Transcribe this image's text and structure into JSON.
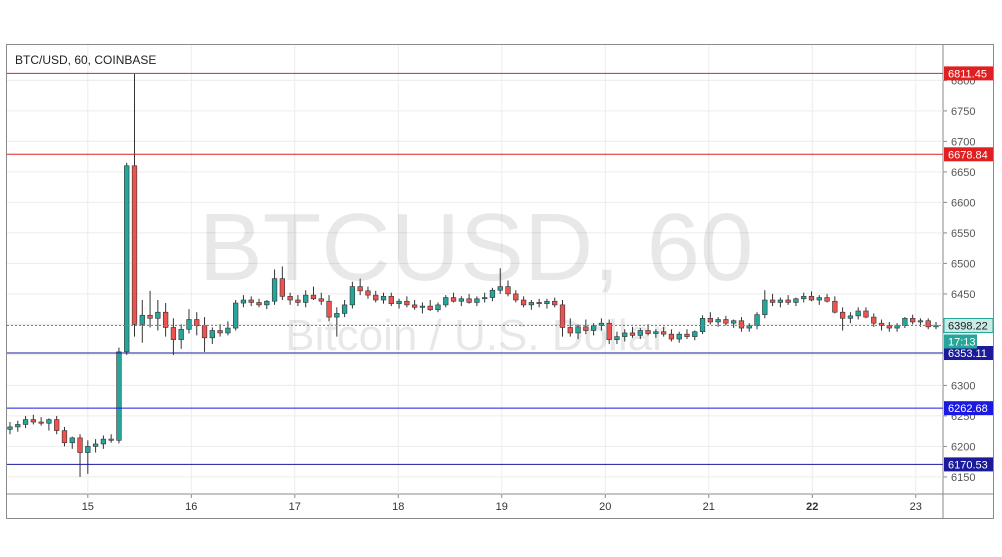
{
  "symbol_label": "BTC/USD, 60, COINBASE",
  "watermark": {
    "main": "BTCUSD, 60",
    "sub": "Bitcoin / U.S. Dollar"
  },
  "chart_data": {
    "type": "candlestick",
    "title": "BTC/USD, 60, COINBASE",
    "ylim": [
      6122,
      6858
    ],
    "y_ticks": [
      6150,
      6200,
      6250,
      6300,
      6350,
      6400,
      6450,
      6500,
      6550,
      6600,
      6650,
      6700,
      6750,
      6800
    ],
    "x_ticks": [
      "15",
      "16",
      "17",
      "18",
      "19",
      "20",
      "21",
      "22",
      "23"
    ],
    "x_tick_bold": "22",
    "grid": true,
    "up_color": "#26a69a",
    "down_color": "#ef5350",
    "horizontal_levels": [
      {
        "value": 6811.45,
        "label": "6811.45",
        "color": "#e02020"
      },
      {
        "value": 6678.84,
        "label": "6678.84",
        "color": "#e02020"
      },
      {
        "value": 6353.11,
        "label": "6353.11",
        "color": "#1a1a9a"
      },
      {
        "value": 6262.68,
        "label": "6262.68",
        "color": "#1a1ae0"
      },
      {
        "value": 6170.53,
        "label": "6170.53",
        "color": "#1a1a9a"
      }
    ],
    "current_price": {
      "value": 6398.22,
      "label": "6398.22",
      "color": "#26a69a",
      "countdown": "17:13"
    },
    "ohlc": [
      [
        6228,
        6240,
        6220,
        6232
      ],
      [
        6232,
        6242,
        6224,
        6236
      ],
      [
        6236,
        6250,
        6230,
        6244
      ],
      [
        6244,
        6252,
        6236,
        6240
      ],
      [
        6240,
        6248,
        6234,
        6238
      ],
      [
        6238,
        6246,
        6226,
        6244
      ],
      [
        6244,
        6250,
        6220,
        6226
      ],
      [
        6226,
        6232,
        6200,
        6206
      ],
      [
        6206,
        6216,
        6196,
        6214
      ],
      [
        6214,
        6220,
        6150,
        6190
      ],
      [
        6190,
        6210,
        6155,
        6200
      ],
      [
        6200,
        6212,
        6190,
        6204
      ],
      [
        6204,
        6218,
        6196,
        6212
      ],
      [
        6212,
        6220,
        6206,
        6210
      ],
      [
        6210,
        6362,
        6205,
        6355
      ],
      [
        6355,
        6665,
        6350,
        6660
      ],
      [
        6660,
        6811,
        6380,
        6400
      ],
      [
        6400,
        6440,
        6370,
        6415
      ],
      [
        6415,
        6455,
        6395,
        6410
      ],
      [
        6410,
        6440,
        6390,
        6420
      ],
      [
        6420,
        6435,
        6380,
        6395
      ],
      [
        6395,
        6410,
        6350,
        6375
      ],
      [
        6375,
        6400,
        6360,
        6392
      ],
      [
        6392,
        6425,
        6385,
        6408
      ],
      [
        6408,
        6420,
        6382,
        6398
      ],
      [
        6398,
        6412,
        6355,
        6378
      ],
      [
        6378,
        6395,
        6368,
        6390
      ],
      [
        6390,
        6400,
        6380,
        6386
      ],
      [
        6386,
        6405,
        6382,
        6394
      ],
      [
        6394,
        6440,
        6390,
        6435
      ],
      [
        6435,
        6448,
        6428,
        6440
      ],
      [
        6440,
        6446,
        6430,
        6436
      ],
      [
        6436,
        6442,
        6428,
        6432
      ],
      [
        6432,
        6440,
        6425,
        6438
      ],
      [
        6438,
        6490,
        6432,
        6475
      ],
      [
        6475,
        6495,
        6440,
        6446
      ],
      [
        6446,
        6452,
        6432,
        6440
      ],
      [
        6440,
        6448,
        6430,
        6436
      ],
      [
        6436,
        6456,
        6428,
        6448
      ],
      [
        6448,
        6462,
        6440,
        6442
      ],
      [
        6442,
        6452,
        6432,
        6438
      ],
      [
        6438,
        6448,
        6405,
        6412
      ],
      [
        6412,
        6428,
        6380,
        6418
      ],
      [
        6418,
        6440,
        6412,
        6432
      ],
      [
        6432,
        6470,
        6426,
        6462
      ],
      [
        6462,
        6475,
        6448,
        6455
      ],
      [
        6455,
        6462,
        6442,
        6448
      ],
      [
        6448,
        6455,
        6436,
        6440
      ],
      [
        6440,
        6452,
        6434,
        6446
      ],
      [
        6446,
        6452,
        6430,
        6434
      ],
      [
        6434,
        6442,
        6426,
        6438
      ],
      [
        6438,
        6446,
        6428,
        6432
      ],
      [
        6432,
        6440,
        6424,
        6428
      ],
      [
        6428,
        6436,
        6418,
        6430
      ],
      [
        6430,
        6440,
        6422,
        6424
      ],
      [
        6424,
        6436,
        6420,
        6432
      ],
      [
        6432,
        6448,
        6428,
        6444
      ],
      [
        6444,
        6452,
        6436,
        6438
      ],
      [
        6438,
        6446,
        6430,
        6442
      ],
      [
        6442,
        6450,
        6434,
        6436
      ],
      [
        6436,
        6446,
        6430,
        6442
      ],
      [
        6442,
        6452,
        6436,
        6444
      ],
      [
        6444,
        6460,
        6438,
        6456
      ],
      [
        6456,
        6492,
        6450,
        6462
      ],
      [
        6462,
        6472,
        6446,
        6450
      ],
      [
        6450,
        6456,
        6436,
        6440
      ],
      [
        6440,
        6446,
        6428,
        6432
      ],
      [
        6432,
        6440,
        6424,
        6436
      ],
      [
        6436,
        6442,
        6428,
        6434
      ],
      [
        6434,
        6442,
        6426,
        6438
      ],
      [
        6438,
        6444,
        6428,
        6432
      ],
      [
        6432,
        6440,
        6380,
        6395
      ],
      [
        6395,
        6410,
        6380,
        6386
      ],
      [
        6386,
        6400,
        6376,
        6396
      ],
      [
        6396,
        6408,
        6384,
        6390
      ],
      [
        6390,
        6402,
        6382,
        6398
      ],
      [
        6398,
        6410,
        6390,
        6402
      ],
      [
        6402,
        6408,
        6368,
        6375
      ],
      [
        6375,
        6388,
        6368,
        6380
      ],
      [
        6380,
        6392,
        6372,
        6386
      ],
      [
        6386,
        6396,
        6378,
        6382
      ],
      [
        6382,
        6394,
        6376,
        6390
      ],
      [
        6390,
        6400,
        6382,
        6385
      ],
      [
        6385,
        6392,
        6378,
        6388
      ],
      [
        6388,
        6396,
        6380,
        6384
      ],
      [
        6384,
        6392,
        6372,
        6376
      ],
      [
        6376,
        6388,
        6370,
        6384
      ],
      [
        6384,
        6392,
        6376,
        6380
      ],
      [
        6380,
        6390,
        6374,
        6388
      ],
      [
        6388,
        6415,
        6384,
        6410
      ],
      [
        6410,
        6420,
        6400,
        6404
      ],
      [
        6404,
        6412,
        6396,
        6408
      ],
      [
        6408,
        6414,
        6398,
        6402
      ],
      [
        6402,
        6408,
        6394,
        6406
      ],
      [
        6406,
        6412,
        6388,
        6394
      ],
      [
        6394,
        6402,
        6388,
        6398
      ],
      [
        6398,
        6420,
        6392,
        6416
      ],
      [
        6416,
        6456,
        6410,
        6440
      ],
      [
        6440,
        6450,
        6430,
        6436
      ],
      [
        6436,
        6444,
        6428,
        6440
      ],
      [
        6440,
        6448,
        6432,
        6436
      ],
      [
        6436,
        6444,
        6430,
        6442
      ],
      [
        6442,
        6452,
        6436,
        6446
      ],
      [
        6446,
        6454,
        6438,
        6440
      ],
      [
        6440,
        6448,
        6432,
        6444
      ],
      [
        6444,
        6450,
        6436,
        6438
      ],
      [
        6438,
        6446,
        6418,
        6420
      ],
      [
        6420,
        6428,
        6390,
        6410
      ],
      [
        6410,
        6420,
        6402,
        6414
      ],
      [
        6414,
        6428,
        6408,
        6422
      ],
      [
        6422,
        6428,
        6410,
        6412
      ],
      [
        6412,
        6418,
        6396,
        6402
      ],
      [
        6402,
        6408,
        6390,
        6398
      ],
      [
        6398,
        6404,
        6388,
        6394
      ],
      [
        6394,
        6402,
        6388,
        6398
      ],
      [
        6398,
        6412,
        6394,
        6410
      ],
      [
        6410,
        6416,
        6400,
        6404
      ],
      [
        6404,
        6410,
        6396,
        6406
      ],
      [
        6406,
        6410,
        6392,
        6396
      ],
      [
        6396,
        6404,
        6392,
        6398
      ]
    ]
  }
}
